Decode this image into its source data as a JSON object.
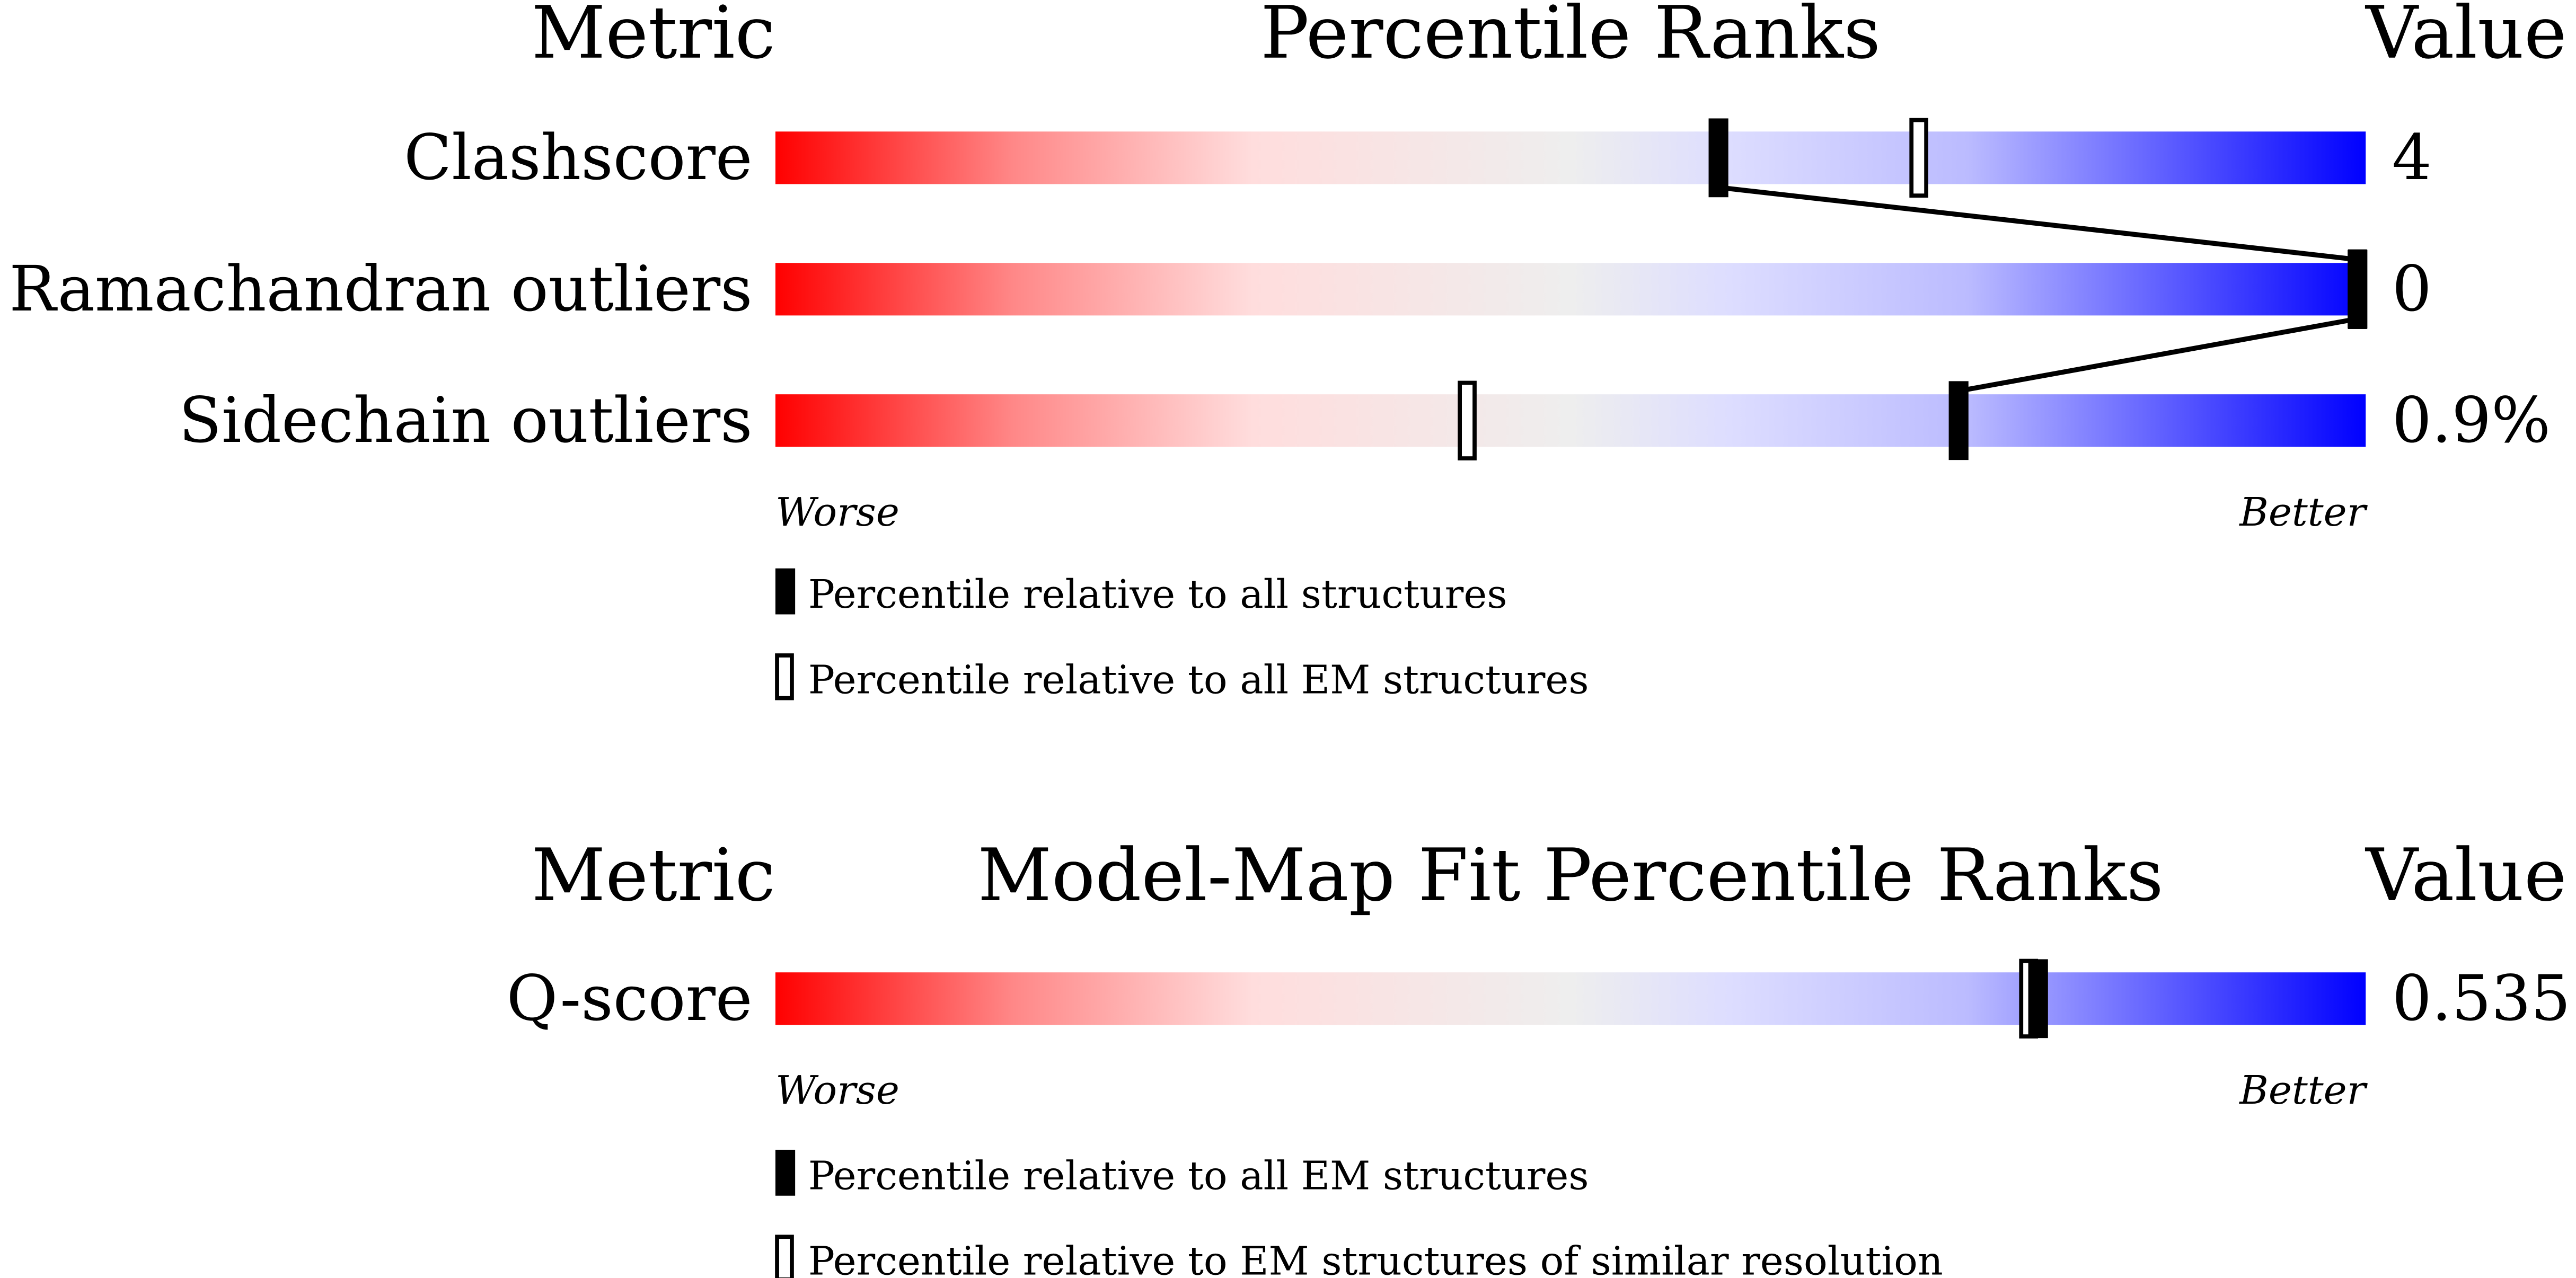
{
  "chart_data": [
    {
      "type": "bar",
      "subtype": "percentile-slider",
      "header": {
        "metric": "Metric",
        "title": "Percentile Ranks",
        "value": "Value"
      },
      "xlim": [
        0,
        100
      ],
      "scale_labels": {
        "left": "Worse",
        "right": "Better"
      },
      "rows": [
        {
          "label": "Clashscore",
          "value": "4",
          "percentile_all": 59.3,
          "percentile_em": 71.9
        },
        {
          "label": "Ramachandran outliers",
          "value": "0",
          "percentile_all": 100,
          "percentile_em": 100
        },
        {
          "label": "Sidechain outliers",
          "value": "0.9%",
          "percentile_all": 74.4,
          "percentile_em": 43.5
        }
      ],
      "legend": [
        {
          "marker": "filled",
          "label": "Percentile relative to all structures"
        },
        {
          "marker": "hollow",
          "label": "Percentile relative to all EM structures"
        }
      ]
    },
    {
      "type": "bar",
      "subtype": "percentile-slider",
      "header": {
        "metric": "Metric",
        "title": "Model-Map Fit Percentile Ranks",
        "value": "Value"
      },
      "xlim": [
        0,
        100
      ],
      "scale_labels": {
        "left": "Worse",
        "right": "Better"
      },
      "rows": [
        {
          "label": "Q-score",
          "value": "0.535",
          "percentile_all": 79.4,
          "percentile_em": 78.8
        }
      ],
      "legend": [
        {
          "marker": "filled",
          "label": "Percentile relative to all EM structures"
        },
        {
          "marker": "hollow",
          "label": "Percentile relative to EM structures of similar resolution"
        }
      ]
    }
  ],
  "colors": {
    "worse": "#ff0000",
    "middle": "#eeeeee",
    "better": "#0000ff",
    "marker": "#000000"
  }
}
